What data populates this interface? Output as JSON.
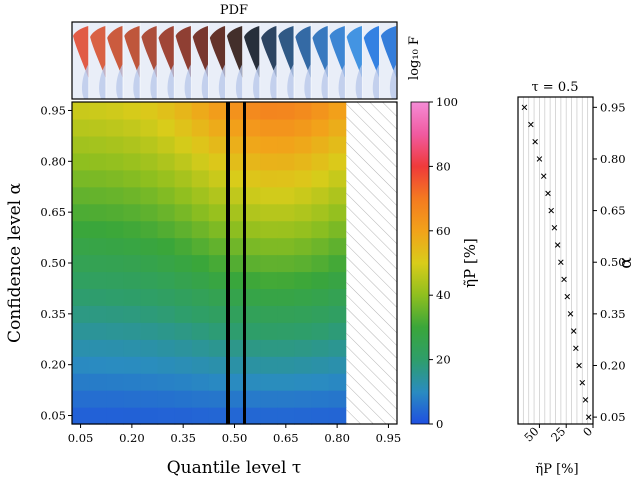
{
  "figure": {
    "pdf_title": "PDF",
    "pdf_side_label": "log₁₀ F",
    "x_label": "Quantile level τ",
    "y_label": "Confidence level α",
    "colorbar_label": "η̃P [%]",
    "right_title": "τ = 0.5",
    "right_xlabel": "η̃P [%]",
    "right_ylabel": "α"
  },
  "colors": {
    "colormap_stops": [
      "#1f4fe0",
      "#2a8cc0",
      "#2e9e6a",
      "#3aa63a",
      "#8fbf1f",
      "#d9cc1a",
      "#f2a21a",
      "#f47a20",
      "#ef3a3a",
      "#f05aa0",
      "#f58cd6"
    ],
    "hatch": "#b5b5b5",
    "frame": "#000000"
  },
  "chart_data": [
    {
      "type": "heatmap",
      "title": "",
      "xlabel": "Quantile level τ",
      "ylabel": "Confidence level α",
      "x": [
        0.05,
        0.1,
        0.15,
        0.2,
        0.25,
        0.3,
        0.35,
        0.4,
        0.45,
        0.5,
        0.55,
        0.6,
        0.65,
        0.7,
        0.75,
        0.8,
        0.85,
        0.9,
        0.95
      ],
      "y": [
        0.05,
        0.1,
        0.15,
        0.2,
        0.25,
        0.3,
        0.35,
        0.4,
        0.45,
        0.5,
        0.55,
        0.6,
        0.65,
        0.7,
        0.75,
        0.8,
        0.85,
        0.9,
        0.95
      ],
      "x_ticks": [
        "0.05",
        "0.20",
        "0.35",
        "0.50",
        "0.65",
        "0.80",
        "0.95"
      ],
      "y_ticks": [
        "0.05",
        "0.20",
        "0.35",
        "0.50",
        "0.65",
        "0.80",
        "0.95"
      ],
      "missing_region": "τ ≥ 0.85 (hatched)",
      "highlighted_columns": [
        0.5,
        0.55
      ],
      "value_model": "η̃P [%] increases with α (approx. 5 at α=0.05 to ~65 at α=0.95, for τ≈0.5) and peaks near τ≈0.5–0.7; lower toward τ=0.05",
      "colorbar": {
        "label": "η̃P [%]",
        "range": [
          0,
          100
        ],
        "ticks": [
          "0",
          "20",
          "40",
          "60",
          "80",
          "100"
        ]
      }
    },
    {
      "type": "scatter",
      "title": "τ = 0.5",
      "xlabel": "η̃P [%]",
      "ylabel": "α",
      "xlim": [
        70,
        0
      ],
      "ylim": [
        0.03,
        0.98
      ],
      "x_ticks": [
        "50",
        "25",
        "0"
      ],
      "y_ticks": [
        "0.05",
        "0.20",
        "0.35",
        "0.50",
        "0.65",
        "0.80",
        "0.95"
      ],
      "alpha": [
        0.95,
        0.9,
        0.85,
        0.8,
        0.75,
        0.7,
        0.65,
        0.6,
        0.55,
        0.5,
        0.45,
        0.4,
        0.35,
        0.3,
        0.25,
        0.2,
        0.15,
        0.1,
        0.05
      ],
      "eta": [
        64,
        58,
        54,
        50,
        46,
        42,
        39,
        36,
        33,
        30,
        27,
        24,
        21,
        18,
        16,
        13,
        10,
        7,
        4
      ],
      "marker": "x"
    },
    {
      "type": "area",
      "title": "PDF",
      "description_note": "row of 19 vertical density strips, one per τ",
      "strip_colors": [
        "#e0523c",
        "#d8583a",
        "#c95234",
        "#bd4d30",
        "#a94530",
        "#9c3c2c",
        "#8a3528",
        "#732c24",
        "#5e2820",
        "#3a2420",
        "#1c2430",
        "#223a5a",
        "#26507e",
        "#2a62a0",
        "#2e72bc",
        "#3480d2",
        "#3a8ee0",
        "#2a7ae0",
        "#2a76d8"
      ]
    }
  ]
}
